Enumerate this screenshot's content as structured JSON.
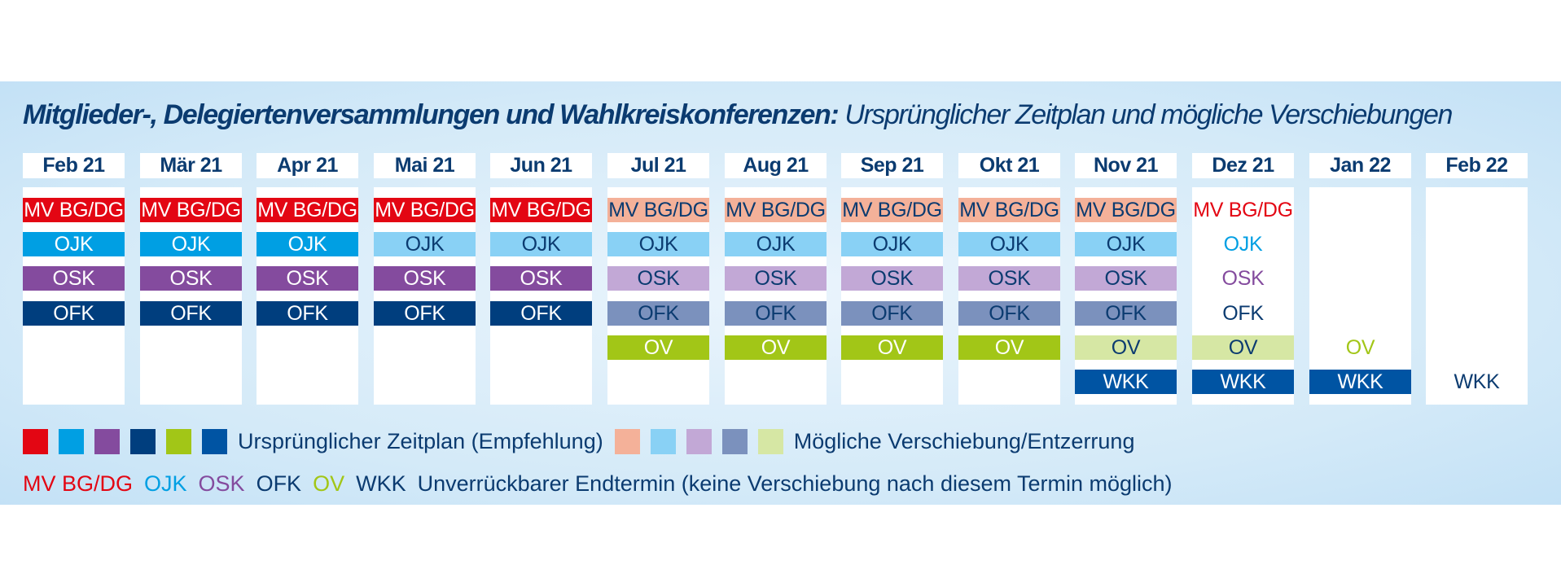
{
  "title": {
    "bold": "Mitglieder-, Delegiertenversammlungen und Wahlkreiskonferenzen:",
    "normal": "Ursprünglicher Zeitplan und mögliche Verschiebungen"
  },
  "colors": {
    "mv_orig": "#e30613",
    "mv_shift": "#f4b199",
    "ojk_orig": "#009fe3",
    "ojk_shift": "#89d1f5",
    "osk_orig": "#844b9e",
    "osk_shift": "#c2a8d6",
    "ofk_orig": "#003e7e",
    "ofk_shift": "#7b91bd",
    "ov_orig": "#a2c617",
    "ov_shift": "#d6e7a4",
    "wkk_orig": "#0054a3",
    "text_dark": "#0b3b70",
    "text_white": "#ffffff"
  },
  "months": [
    {
      "label": "Feb 21",
      "items": [
        {
          "code": "MV BG/DG",
          "row": 0,
          "style": "original",
          "color": "mv"
        },
        {
          "code": "OJK",
          "row": 1,
          "style": "original",
          "color": "ojk"
        },
        {
          "code": "OSK",
          "row": 2,
          "style": "original",
          "color": "osk"
        },
        {
          "code": "OFK",
          "row": 3,
          "style": "original",
          "color": "ofk"
        }
      ]
    },
    {
      "label": "Mär 21",
      "items": [
        {
          "code": "MV BG/DG",
          "row": 0,
          "style": "original",
          "color": "mv"
        },
        {
          "code": "OJK",
          "row": 1,
          "style": "original",
          "color": "ojk"
        },
        {
          "code": "OSK",
          "row": 2,
          "style": "original",
          "color": "osk"
        },
        {
          "code": "OFK",
          "row": 3,
          "style": "original",
          "color": "ofk"
        }
      ]
    },
    {
      "label": "Apr 21",
      "items": [
        {
          "code": "MV BG/DG",
          "row": 0,
          "style": "original",
          "color": "mv"
        },
        {
          "code": "OJK",
          "row": 1,
          "style": "original",
          "color": "ojk"
        },
        {
          "code": "OSK",
          "row": 2,
          "style": "original",
          "color": "osk"
        },
        {
          "code": "OFK",
          "row": 3,
          "style": "original",
          "color": "ofk"
        }
      ]
    },
    {
      "label": "Mai 21",
      "items": [
        {
          "code": "MV BG/DG",
          "row": 0,
          "style": "original",
          "color": "mv"
        },
        {
          "code": "OJK",
          "row": 1,
          "style": "shift",
          "color": "ojk"
        },
        {
          "code": "OSK",
          "row": 2,
          "style": "original",
          "color": "osk"
        },
        {
          "code": "OFK",
          "row": 3,
          "style": "original",
          "color": "ofk"
        }
      ]
    },
    {
      "label": "Jun 21",
      "items": [
        {
          "code": "MV BG/DG",
          "row": 0,
          "style": "original",
          "color": "mv"
        },
        {
          "code": "OJK",
          "row": 1,
          "style": "shift",
          "color": "ojk"
        },
        {
          "code": "OSK",
          "row": 2,
          "style": "original",
          "color": "osk"
        },
        {
          "code": "OFK",
          "row": 3,
          "style": "original",
          "color": "ofk"
        }
      ]
    },
    {
      "label": "Jul 21",
      "items": [
        {
          "code": "MV BG/DG",
          "row": 0,
          "style": "shift",
          "color": "mv"
        },
        {
          "code": "OJK",
          "row": 1,
          "style": "shift",
          "color": "ojk"
        },
        {
          "code": "OSK",
          "row": 2,
          "style": "shift",
          "color": "osk"
        },
        {
          "code": "OFK",
          "row": 3,
          "style": "shift",
          "color": "ofk"
        },
        {
          "code": "OV",
          "row": 4,
          "style": "original",
          "color": "ov"
        }
      ]
    },
    {
      "label": "Aug 21",
      "items": [
        {
          "code": "MV BG/DG",
          "row": 0,
          "style": "shift",
          "color": "mv"
        },
        {
          "code": "OJK",
          "row": 1,
          "style": "shift",
          "color": "ojk"
        },
        {
          "code": "OSK",
          "row": 2,
          "style": "shift",
          "color": "osk"
        },
        {
          "code": "OFK",
          "row": 3,
          "style": "shift",
          "color": "ofk"
        },
        {
          "code": "OV",
          "row": 4,
          "style": "original",
          "color": "ov"
        }
      ]
    },
    {
      "label": "Sep 21",
      "items": [
        {
          "code": "MV BG/DG",
          "row": 0,
          "style": "shift",
          "color": "mv"
        },
        {
          "code": "OJK",
          "row": 1,
          "style": "shift",
          "color": "ojk"
        },
        {
          "code": "OSK",
          "row": 2,
          "style": "shift",
          "color": "osk"
        },
        {
          "code": "OFK",
          "row": 3,
          "style": "shift",
          "color": "ofk"
        },
        {
          "code": "OV",
          "row": 4,
          "style": "original",
          "color": "ov"
        }
      ]
    },
    {
      "label": "Okt 21",
      "items": [
        {
          "code": "MV BG/DG",
          "row": 0,
          "style": "shift",
          "color": "mv"
        },
        {
          "code": "OJK",
          "row": 1,
          "style": "shift",
          "color": "ojk"
        },
        {
          "code": "OSK",
          "row": 2,
          "style": "shift",
          "color": "osk"
        },
        {
          "code": "OFK",
          "row": 3,
          "style": "shift",
          "color": "ofk"
        },
        {
          "code": "OV",
          "row": 4,
          "style": "original",
          "color": "ov"
        }
      ]
    },
    {
      "label": "Nov 21",
      "items": [
        {
          "code": "MV BG/DG",
          "row": 0,
          "style": "shift",
          "color": "mv"
        },
        {
          "code": "OJK",
          "row": 1,
          "style": "shift",
          "color": "ojk"
        },
        {
          "code": "OSK",
          "row": 2,
          "style": "shift",
          "color": "osk"
        },
        {
          "code": "OFK",
          "row": 3,
          "style": "shift",
          "color": "ofk"
        },
        {
          "code": "OV",
          "row": 4,
          "style": "shift",
          "color": "ov"
        },
        {
          "code": "WKK",
          "row": 5,
          "style": "original",
          "color": "wkk"
        }
      ]
    },
    {
      "label": "Dez 21",
      "items": [
        {
          "code": "MV BG/DG",
          "row": 0,
          "style": "deadline",
          "color": "mv"
        },
        {
          "code": "OJK",
          "row": 1,
          "style": "deadline",
          "color": "ojk"
        },
        {
          "code": "OSK",
          "row": 2,
          "style": "deadline",
          "color": "osk"
        },
        {
          "code": "OFK",
          "row": 3,
          "style": "deadline",
          "color": "ofk"
        },
        {
          "code": "OV",
          "row": 4,
          "style": "shift",
          "color": "ov"
        },
        {
          "code": "WKK",
          "row": 5,
          "style": "original",
          "color": "wkk"
        }
      ]
    },
    {
      "label": "Jan 22",
      "items": [
        {
          "code": "OV",
          "row": 4,
          "style": "deadline",
          "color": "ov"
        },
        {
          "code": "WKK",
          "row": 5,
          "style": "original",
          "color": "wkk"
        }
      ]
    },
    {
      "label": "Feb 22",
      "items": [
        {
          "code": "WKK",
          "row": 5,
          "style": "deadline",
          "color": "wkk"
        }
      ]
    }
  ],
  "legend": {
    "original_swatches": [
      "mv_orig",
      "ojk_orig",
      "osk_orig",
      "ofk_orig",
      "ov_orig",
      "wkk_orig"
    ],
    "original_label": "Ursprünglicher Zeitplan (Empfehlung)",
    "shift_swatches": [
      "mv_shift",
      "ojk_shift",
      "osk_shift",
      "ofk_shift",
      "ov_shift"
    ],
    "shift_label": "Mögliche Verschiebung/Entzerrung",
    "deadline_items": [
      {
        "code": "MV BG/DG",
        "color": "mv"
      },
      {
        "code": "OJK",
        "color": "ojk"
      },
      {
        "code": "OSK",
        "color": "osk"
      },
      {
        "code": "OFK",
        "color": "ofk"
      },
      {
        "code": "OV",
        "color": "ov"
      },
      {
        "code": "WKK",
        "color": "wkk"
      }
    ],
    "deadline_label": "Unverrückbarer Endtermin (keine Verschiebung nach diesem Termin möglich)"
  }
}
